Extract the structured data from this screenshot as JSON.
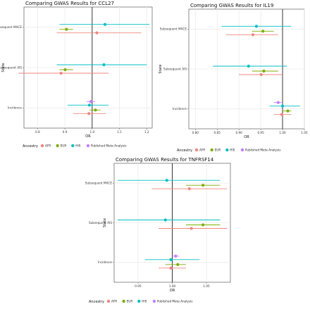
{
  "colors": {
    "AFR": "#f0857c",
    "EUR": "#7cae00",
    "HIS": "#00bfc4",
    "Published Meta Analysis": "#c77cff",
    "ref_line": "#222222",
    "panel_bg": "#ffffff",
    "grid": "#ebebeb"
  },
  "chart_data": [
    {
      "type": "forest",
      "title": "Comparing GWAS Results for CCL27",
      "xlabel": "OR",
      "ylabel": "State",
      "xlim": [
        0.75,
        1.22
      ],
      "xticks": [
        "0.8",
        "0.9",
        "1.0",
        "1.1",
        "1.2"
      ],
      "xtick_values": [
        0.8,
        0.9,
        1.0,
        1.1,
        1.2
      ],
      "reference_line": 1.0,
      "grid": true,
      "categories": [
        "Subsequent MACE",
        "Subsequent AIS",
        "Incidence"
      ],
      "legend": {
        "title": "Ancestry",
        "placement": "bottom",
        "entries": [
          "AFR",
          "EUR",
          "HIS",
          "Published Meta Analysis"
        ]
      },
      "series": [
        {
          "name": "AFR",
          "points": [
            {
              "category": "Subsequent MACE",
              "or": 1.017,
              "lo": 0.87,
              "hi": 1.18
            },
            {
              "category": "Subsequent AIS",
              "or": 0.886,
              "lo": 0.73,
              "hi": 1.06
            },
            {
              "category": "Incidence",
              "or": 0.988,
              "lo": 0.93,
              "hi": 1.05
            }
          ]
        },
        {
          "name": "EUR",
          "points": [
            {
              "category": "Subsequent MACE",
              "or": 0.906,
              "lo": 0.88,
              "hi": 0.93
            },
            {
              "category": "Subsequent AIS",
              "or": 0.901,
              "lo": 0.88,
              "hi": 0.93
            },
            {
              "category": "Incidence",
              "or": 1.012,
              "lo": 0.99,
              "hi": 1.03
            }
          ]
        },
        {
          "name": "HIS",
          "points": [
            {
              "category": "Subsequent MACE",
              "or": 1.047,
              "lo": 0.88,
              "hi": 1.21
            },
            {
              "category": "Subsequent AIS",
              "or": 1.043,
              "lo": 0.87,
              "hi": 1.2
            },
            {
              "category": "Incidence",
              "or": 0.99,
              "lo": 0.91,
              "hi": 1.06
            }
          ]
        },
        {
          "name": "Published Meta Analysis",
          "points": [
            {
              "category": "Incidence",
              "or": 0.995,
              "lo": 0.98,
              "hi": 1.01
            }
          ]
        }
      ]
    },
    {
      "type": "forest",
      "title": "Comparing GWAS Results for IL19",
      "xlabel": "OR",
      "ylabel": "State",
      "xlim": [
        0.785,
        1.05
      ],
      "xticks": [
        "0.80",
        "0.85",
        "0.90",
        "0.95",
        "1.00",
        "1.05"
      ],
      "xtick_values": [
        0.8,
        0.85,
        0.9,
        0.95,
        1.0,
        1.05
      ],
      "reference_line": 1.0,
      "grid": true,
      "categories": [
        "Subsequent MACE",
        "Subsequent AIS",
        "Incidence"
      ],
      "legend": {
        "title": "Ancestry",
        "placement": "bottom",
        "entries": [
          "AFR",
          "EUR",
          "HIS",
          "Published Meta Analysis"
        ]
      },
      "series": [
        {
          "name": "AFR",
          "points": [
            {
              "category": "Subsequent MACE",
              "or": 0.932,
              "lo": 0.87,
              "hi": 0.99
            },
            {
              "category": "Subsequent AIS",
              "or": 0.951,
              "lo": 0.9,
              "hi": 1.0
            },
            {
              "category": "Incidence",
              "or": 0.998,
              "lo": 0.98,
              "hi": 1.02
            }
          ]
        },
        {
          "name": "EUR",
          "points": [
            {
              "category": "Subsequent MACE",
              "or": 0.955,
              "lo": 0.93,
              "hi": 0.98
            },
            {
              "category": "Subsequent AIS",
              "or": 0.957,
              "lo": 0.93,
              "hi": 0.99
            },
            {
              "category": "Incidence",
              "or": 1.012,
              "lo": 1.0,
              "hi": 1.02
            }
          ]
        },
        {
          "name": "HIS",
          "points": [
            {
              "category": "Subsequent MACE",
              "or": 0.94,
              "lo": 0.86,
              "hi": 1.02
            },
            {
              "category": "Subsequent AIS",
              "or": 0.922,
              "lo": 0.84,
              "hi": 1.01
            },
            {
              "category": "Incidence",
              "or": 1.0,
              "lo": 0.97,
              "hi": 1.04
            }
          ]
        },
        {
          "name": "Published Meta Analysis",
          "points": [
            {
              "category": "Incidence",
              "or": 0.99,
              "lo": 0.98,
              "hi": 1.0
            }
          ]
        }
      ]
    },
    {
      "type": "forest",
      "title": "Comparing GWAS Results for TNFRSF14",
      "xlabel": "OR",
      "ylabel": "State",
      "xlim": [
        0.915,
        1.085
      ],
      "xticks": [
        "0.95",
        "1.00",
        "1.05"
      ],
      "xtick_values": [
        0.95,
        1.0,
        1.05
      ],
      "reference_line": 1.0,
      "grid": true,
      "categories": [
        "Subsequent MACE",
        "Subsequent AIS",
        "Incidence"
      ],
      "legend": {
        "title": "Ancestry",
        "placement": "bottom",
        "entries": [
          "AFR",
          "EUR",
          "HIS",
          "Published Meta Analysis"
        ]
      },
      "series": [
        {
          "name": "AFR",
          "points": [
            {
              "category": "Subsequent MACE",
              "or": 1.025,
              "lo": 0.97,
              "hi": 1.08
            },
            {
              "category": "Subsequent AIS",
              "or": 1.028,
              "lo": 0.98,
              "hi": 1.08
            },
            {
              "category": "Incidence",
              "or": 0.998,
              "lo": 0.98,
              "hi": 1.02
            }
          ]
        },
        {
          "name": "EUR",
          "points": [
            {
              "category": "Subsequent MACE",
              "or": 1.045,
              "lo": 1.02,
              "hi": 1.07
            },
            {
              "category": "Subsequent AIS",
              "or": 1.045,
              "lo": 1.02,
              "hi": 1.07
            },
            {
              "category": "Incidence",
              "or": 1.008,
              "lo": 0.99,
              "hi": 1.02
            }
          ]
        },
        {
          "name": "HIS",
          "points": [
            {
              "category": "Subsequent MACE",
              "or": 0.992,
              "lo": 0.92,
              "hi": 1.07
            },
            {
              "category": "Subsequent AIS",
              "or": 0.99,
              "lo": 0.92,
              "hi": 1.07
            },
            {
              "category": "Incidence",
              "or": 0.998,
              "lo": 0.96,
              "hi": 1.04
            }
          ]
        },
        {
          "name": "Published Meta Analysis",
          "points": [
            {
              "category": "Incidence",
              "or": 1.005,
              "lo": 1.0,
              "hi": 1.01
            }
          ]
        }
      ]
    }
  ]
}
